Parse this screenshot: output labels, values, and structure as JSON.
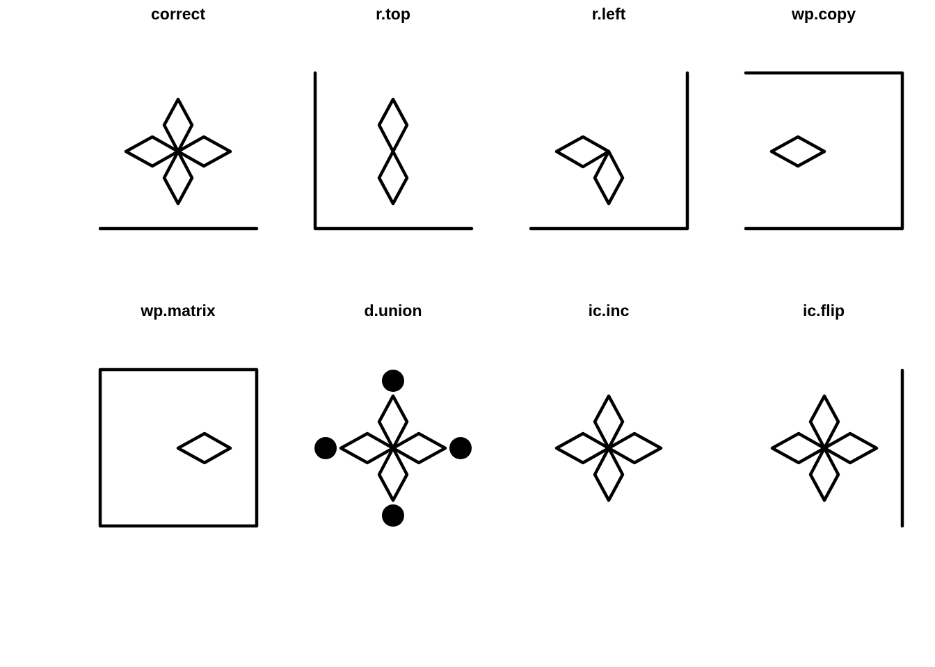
{
  "panels": [
    {
      "title": "correct",
      "parts": [
        "frame-bottom",
        "petal-top",
        "petal-bottom",
        "petal-left",
        "petal-right"
      ]
    },
    {
      "title": "r.top",
      "parts": [
        "frame-bottom",
        "frame-left",
        "petal-top",
        "petal-bottom"
      ]
    },
    {
      "title": "r.left",
      "parts": [
        "frame-bottom",
        "frame-right",
        "petal-down-right",
        "petal-up-left"
      ]
    },
    {
      "title": "wp.copy",
      "parts": [
        "frame-top",
        "frame-right",
        "frame-bottom",
        "small-diamond-left"
      ]
    },
    {
      "title": "wp.matrix",
      "parts": [
        "frame-box",
        "small-diamond-right"
      ]
    },
    {
      "title": "d.union",
      "parts": [
        "petal-top",
        "petal-bottom",
        "petal-left",
        "petal-right",
        "dots"
      ]
    },
    {
      "title": "ic.inc",
      "parts": [
        "petal-top",
        "petal-bottom",
        "petal-left",
        "petal-right"
      ]
    },
    {
      "title": "ic.flip",
      "parts": [
        "petal-top",
        "petal-bottom",
        "petal-left",
        "petal-right",
        "frame-right-edge"
      ]
    }
  ]
}
